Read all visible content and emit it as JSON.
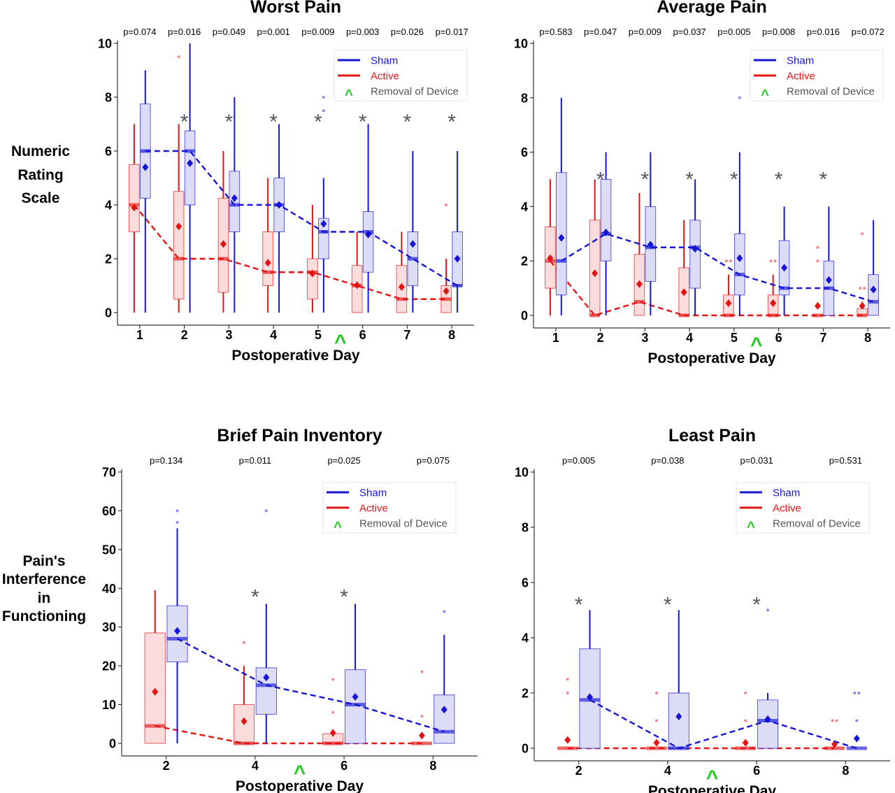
{
  "ylabels": {
    "nrs": [
      "Numeric",
      "Rating",
      "Scale"
    ],
    "pif": [
      "Pain's",
      "Interference",
      "in",
      "Functioning"
    ]
  },
  "legend": {
    "sham": "Sham",
    "active": "Active",
    "removal": "Removal of Device",
    "removal_symbol": "^"
  },
  "colors": {
    "sham": "#1515d6",
    "active": "#e41414",
    "sham_fill": "#dcdcf7",
    "active_fill": "#fbdcdc",
    "removal": "#22cc22",
    "star": "#555555"
  },
  "chart_data": [
    {
      "type": "box",
      "title": "Worst Pain",
      "xlabel": "Postoperative Day",
      "days": [
        1,
        2,
        3,
        4,
        5,
        6,
        7,
        8
      ],
      "ylim": [
        0,
        10
      ],
      "yticks": [
        0,
        2,
        4,
        6,
        8,
        10
      ],
      "pvalues": [
        "p=0.074",
        "p=0.016",
        "p=0.049",
        "p=0.001",
        "p=0.009",
        "p=0.003",
        "p=0.026",
        "p=0.017"
      ],
      "significant_days": [
        2,
        3,
        4,
        5,
        6,
        7,
        8
      ],
      "removal_between": [
        5,
        6
      ],
      "grid": false,
      "legend_position": "top-right",
      "series": [
        {
          "name": "Active",
          "median": [
            4,
            2,
            2,
            1.5,
            1.5,
            1,
            0.5,
            0.5
          ],
          "mean": [
            3.9,
            3.2,
            2.55,
            1.85,
            1.45,
            1.02,
            0.95,
            0.8
          ],
          "q1": [
            3,
            0.5,
            0.75,
            1,
            0.5,
            0,
            0,
            0
          ],
          "q3": [
            5.5,
            4.5,
            4.25,
            3,
            2,
            1.75,
            1.75,
            1
          ],
          "whislo": [
            0,
            0,
            0,
            0,
            0,
            0,
            0,
            0
          ],
          "whishi": [
            7,
            7,
            6,
            5,
            4,
            3,
            3,
            2
          ],
          "outliers": [
            [],
            [
              9.5
            ],
            [],
            [],
            [],
            [],
            [],
            [
              4
            ]
          ]
        },
        {
          "name": "Sham",
          "median": [
            6,
            6,
            4,
            4,
            3,
            3,
            2,
            1
          ],
          "mean": [
            5.4,
            5.55,
            4.25,
            4,
            3.3,
            2.9,
            2.55,
            2
          ],
          "q1": [
            4.25,
            4,
            3,
            3,
            2,
            1.5,
            1,
            1
          ],
          "q3": [
            7.75,
            6.75,
            5.25,
            5,
            3.5,
            3.75,
            3,
            3
          ],
          "whislo": [
            0,
            0,
            0,
            0,
            0,
            0,
            0,
            0
          ],
          "whishi": [
            9,
            10,
            8,
            7,
            5,
            7,
            6,
            6
          ],
          "outliers": [
            [],
            [],
            [],
            [],
            [
              8,
              7.5
            ],
            [],
            [
              9
            ],
            []
          ]
        }
      ]
    },
    {
      "type": "box",
      "title": "Average Pain",
      "xlabel": "Postoperative Day",
      "days": [
        1,
        2,
        3,
        4,
        5,
        6,
        7,
        8
      ],
      "ylim": [
        0,
        10
      ],
      "yticks": [
        0,
        2,
        4,
        6,
        8,
        10
      ],
      "pvalues": [
        "p=0.583",
        "p=0.047",
        "p=0.009",
        "p=0.037",
        "p=0.005",
        "p=0.008",
        "p=0.016",
        "p=0.072"
      ],
      "significant_days": [
        2,
        3,
        4,
        5,
        6,
        7
      ],
      "removal_between": [
        5,
        6
      ],
      "grid": false,
      "legend_position": "top-right",
      "series": [
        {
          "name": "Active",
          "median": [
            2,
            0,
            0.5,
            0,
            0,
            0,
            0,
            0
          ],
          "mean": [
            2.1,
            1.55,
            1.15,
            0.85,
            0.45,
            0.45,
            0.35,
            0.35
          ],
          "q1": [
            1,
            0,
            0,
            0,
            0,
            0,
            0,
            0
          ],
          "q3": [
            3.25,
            3.5,
            2.25,
            1.75,
            0.75,
            0.75,
            0,
            0.25
          ],
          "whislo": [
            0,
            0,
            0,
            0,
            0,
            0,
            0,
            0
          ],
          "whishi": [
            5,
            5,
            4.5,
            3.5,
            1.5,
            1.5,
            0,
            0.5
          ],
          "outliers": [
            [],
            [],
            [],
            [],
            [
              2,
              2
            ],
            [
              2,
              2
            ],
            [
              2.5,
              2
            ],
            [
              3,
              1,
              1
            ]
          ]
        },
        {
          "name": "Sham",
          "median": [
            2,
            3,
            2.5,
            2.5,
            1.5,
            1,
            1,
            0.5
          ],
          "mean": [
            2.85,
            3.05,
            2.6,
            2.45,
            2.1,
            1.75,
            1.3,
            0.95
          ],
          "q1": [
            0.75,
            2,
            1.25,
            1,
            0.75,
            0.75,
            0,
            0
          ],
          "q3": [
            5.25,
            5,
            4,
            3.5,
            3,
            2.75,
            2,
            1.5
          ],
          "whislo": [
            0,
            0,
            0,
            0,
            0,
            0,
            0,
            0
          ],
          "whishi": [
            8,
            6,
            6,
            5,
            6,
            4,
            4,
            3.5
          ],
          "outliers": [
            [],
            [],
            [],
            [],
            [
              8
            ],
            [],
            [
              9
            ],
            []
          ]
        }
      ]
    },
    {
      "type": "box",
      "title": "Brief Pain Inventory",
      "xlabel": "Postoperative Day",
      "days": [
        2,
        4,
        6,
        8
      ],
      "ylim": [
        0,
        70
      ],
      "yticks": [
        0,
        10,
        20,
        30,
        40,
        50,
        60,
        70
      ],
      "pvalues": [
        "p=0.134",
        "p=0.011",
        "p=0.025",
        "p=0.075"
      ],
      "significant_days": [
        4,
        6
      ],
      "removal_between": [
        4,
        6
      ],
      "grid": false,
      "legend_position": "top-right",
      "series": [
        {
          "name": "Active",
          "median": [
            4.5,
            0,
            0,
            0
          ],
          "mean": [
            13.3,
            5.7,
            2.7,
            2
          ],
          "q1": [
            0,
            0,
            0,
            0
          ],
          "q3": [
            28.5,
            10,
            2.5,
            0
          ],
          "whislo": [
            0,
            0,
            0,
            0
          ],
          "whishi": [
            39.5,
            20,
            2.5,
            0
          ],
          "outliers": [
            [],
            [
              26
            ],
            [
              16.5,
              8
            ],
            [
              18.5,
              7
            ]
          ]
        },
        {
          "name": "Sham",
          "median": [
            27,
            15,
            10,
            3
          ],
          "mean": [
            29,
            17,
            12,
            8.7
          ],
          "q1": [
            21,
            7.5,
            0,
            0
          ],
          "q3": [
            35.5,
            19.5,
            19,
            12.5
          ],
          "whislo": [
            0,
            0,
            0,
            0
          ],
          "whishi": [
            55.5,
            36,
            36,
            28
          ],
          "outliers": [
            [
              60,
              57
            ],
            [
              60
            ],
            [],
            [
              34
            ]
          ]
        }
      ]
    },
    {
      "type": "box",
      "title": "Least Pain",
      "xlabel": "Postoperative Day",
      "days": [
        2,
        4,
        6,
        8
      ],
      "ylim": [
        0,
        10
      ],
      "yticks": [
        0,
        2,
        4,
        6,
        8,
        10
      ],
      "pvalues": [
        "p=0.005",
        "p=0.038",
        "p=0.031",
        "p=0.531"
      ],
      "significant_days": [
        2,
        4,
        6
      ],
      "removal_between": [
        4,
        6
      ],
      "grid": false,
      "legend_position": "top-right",
      "series": [
        {
          "name": "Active",
          "median": [
            0,
            0,
            0,
            0
          ],
          "mean": [
            0.3,
            0.2,
            0.2,
            0.15
          ],
          "q1": [
            0,
            0,
            0,
            0
          ],
          "q3": [
            0,
            0,
            0,
            0
          ],
          "whislo": [
            0,
            0,
            0,
            0
          ],
          "whishi": [
            0,
            0,
            0,
            0
          ],
          "outliers": [
            [
              2.5,
              2
            ],
            [
              2,
              1
            ],
            [
              2,
              1
            ],
            [
              1,
              1
            ]
          ]
        },
        {
          "name": "Sham",
          "median": [
            1.75,
            0,
            1,
            0
          ],
          "mean": [
            1.85,
            1.15,
            1.05,
            0.35
          ],
          "q1": [
            0,
            0,
            0,
            0
          ],
          "q3": [
            3.6,
            2,
            1.75,
            0
          ],
          "whislo": [
            0,
            0,
            0,
            0
          ],
          "whishi": [
            5,
            5,
            2,
            0
          ],
          "outliers": [
            [],
            [],
            [
              5
            ],
            [
              2,
              2,
              1
            ]
          ]
        }
      ]
    }
  ]
}
